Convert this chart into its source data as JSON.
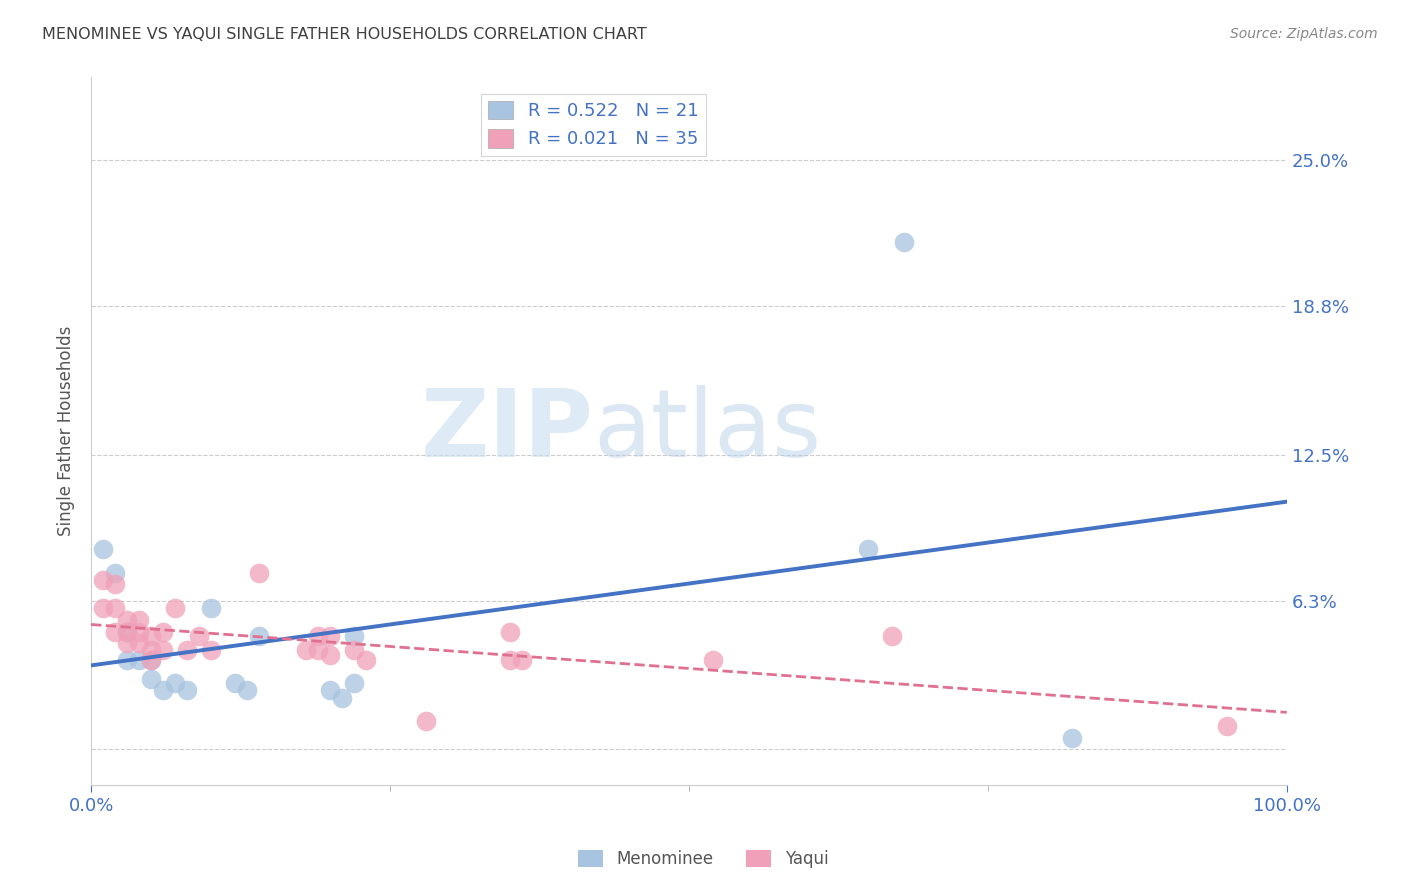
{
  "title": "MENOMINEE VS YAQUI SINGLE FATHER HOUSEHOLDS CORRELATION CHART",
  "source": "Source: ZipAtlas.com",
  "ylabel": "Single Father Households",
  "xlim": [
    0.0,
    1.0
  ],
  "ylim": [
    -0.015,
    0.285
  ],
  "yticks": [
    0.0,
    0.063,
    0.125,
    0.188,
    0.25
  ],
  "ytick_labels": [
    "",
    "6.3%",
    "12.5%",
    "18.8%",
    "25.0%"
  ],
  "xtick_labels": [
    "0.0%",
    "100.0%"
  ],
  "xticks": [
    0.0,
    1.0
  ],
  "menominee_R": "0.522",
  "menominee_N": "21",
  "yaqui_R": "0.021",
  "yaqui_N": "35",
  "menominee_color": "#a8c4e0",
  "yaqui_color": "#f0a0b8",
  "line_color_menominee": "#4472c4",
  "line_color_yaqui": "#e07090",
  "menominee_x": [
    0.01,
    0.02,
    0.03,
    0.03,
    0.04,
    0.05,
    0.05,
    0.06,
    0.07,
    0.08,
    0.1,
    0.12,
    0.13,
    0.14,
    0.2,
    0.21,
    0.22,
    0.22,
    0.65,
    0.68,
    0.82
  ],
  "menominee_y": [
    0.085,
    0.075,
    0.05,
    0.038,
    0.038,
    0.038,
    0.03,
    0.025,
    0.028,
    0.025,
    0.06,
    0.028,
    0.025,
    0.048,
    0.025,
    0.022,
    0.028,
    0.048,
    0.085,
    0.215,
    0.005
  ],
  "yaqui_x": [
    0.01,
    0.01,
    0.02,
    0.02,
    0.02,
    0.03,
    0.03,
    0.03,
    0.04,
    0.04,
    0.04,
    0.05,
    0.05,
    0.05,
    0.06,
    0.06,
    0.07,
    0.08,
    0.09,
    0.1,
    0.14,
    0.18,
    0.19,
    0.19,
    0.2,
    0.2,
    0.22,
    0.23,
    0.28,
    0.35,
    0.35,
    0.36,
    0.52,
    0.67,
    0.95
  ],
  "yaqui_y": [
    0.072,
    0.06,
    0.07,
    0.06,
    0.05,
    0.055,
    0.05,
    0.045,
    0.055,
    0.05,
    0.045,
    0.048,
    0.042,
    0.038,
    0.05,
    0.042,
    0.06,
    0.042,
    0.048,
    0.042,
    0.075,
    0.042,
    0.042,
    0.048,
    0.048,
    0.04,
    0.042,
    0.038,
    0.012,
    0.05,
    0.038,
    0.038,
    0.038,
    0.048,
    0.01
  ],
  "watermark_zip": "ZIP",
  "watermark_atlas": "atlas",
  "background_color": "#ffffff",
  "grid_color": "#cccccc",
  "title_color": "#404040",
  "axis_label_color": "#555555",
  "tick_color": "#4472c4",
  "legend_text_color": "#4472c4"
}
